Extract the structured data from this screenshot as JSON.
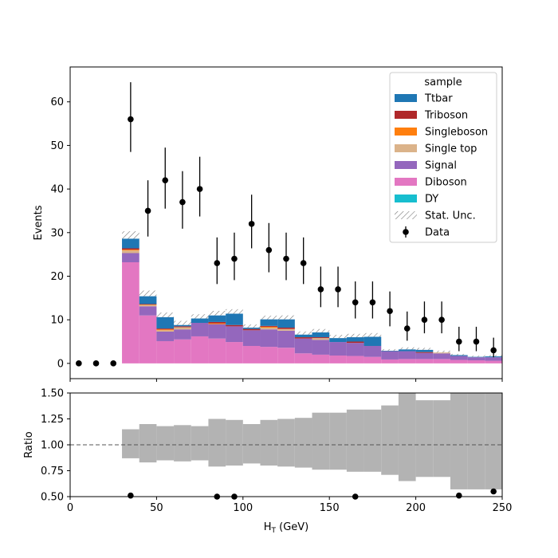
{
  "chart_data": [
    {
      "panel": "main",
      "type": "bar",
      "stacked": true,
      "ylabel": "Events",
      "xlabel": "",
      "xlim": [
        0,
        250
      ],
      "ylim": [
        -3.5,
        68
      ],
      "yticks": [
        0,
        10,
        20,
        30,
        40,
        50,
        60
      ],
      "bin_edges": [
        0,
        10,
        20,
        30,
        40,
        50,
        60,
        70,
        80,
        90,
        100,
        110,
        120,
        130,
        140,
        150,
        160,
        170,
        180,
        190,
        200,
        210,
        220,
        230,
        240,
        250
      ],
      "legend": {
        "title": "sample",
        "placement": "top-right"
      },
      "series": [
        {
          "name": "Diboson",
          "color": "#e377c2",
          "values": [
            0,
            0,
            0,
            23.2,
            11.0,
            5.1,
            5.5,
            6.2,
            5.7,
            4.9,
            4.0,
            3.8,
            3.6,
            2.3,
            2.0,
            1.8,
            1.7,
            1.5,
            0.9,
            1.0,
            1.0,
            1.0,
            0.8,
            0.7,
            0.6
          ]
        },
        {
          "name": "DY",
          "color": "#17becf",
          "values": [
            0,
            0,
            0,
            0,
            0,
            0,
            0,
            0,
            0,
            0,
            0,
            0,
            0,
            0,
            0,
            0,
            0,
            0,
            0,
            0,
            0,
            0,
            0,
            0,
            0
          ]
        },
        {
          "name": "Signal",
          "color": "#9467bd",
          "values": [
            0,
            0,
            0,
            2.1,
            2.1,
            2.2,
            2.3,
            3.1,
            3.3,
            3.6,
            3.6,
            4.0,
            3.9,
            3.4,
            3.4,
            3.1,
            3.0,
            2.5,
            1.9,
            1.8,
            1.4,
            1.3,
            0.9,
            0.7,
            0.8
          ]
        },
        {
          "name": "Single top",
          "color": "#dbb38a",
          "values": [
            0,
            0,
            0,
            0.6,
            0.3,
            0.3,
            0.5,
            0,
            0,
            0,
            0,
            0.4,
            0.4,
            0,
            0.4,
            0,
            0,
            0,
            0,
            0,
            0,
            0.2,
            0,
            0,
            0
          ]
        },
        {
          "name": "Singleboson",
          "color": "#ff7f0e",
          "values": [
            0,
            0,
            0,
            0.2,
            0.1,
            0.2,
            0,
            0,
            0.2,
            0,
            0,
            0.2,
            0,
            0,
            0,
            0,
            0,
            0,
            0,
            0,
            0,
            0,
            0,
            0,
            0
          ]
        },
        {
          "name": "Triboson",
          "color": "#b0282a",
          "values": [
            0,
            0,
            0,
            0.3,
            0.1,
            0.2,
            0.2,
            0,
            0.3,
            0.3,
            0.3,
            0.2,
            0.3,
            0.3,
            0.2,
            0,
            0.3,
            0,
            0,
            0,
            0.2,
            0,
            0,
            0,
            0
          ]
        },
        {
          "name": "Ttbar",
          "color": "#1f77b4",
          "values": [
            0,
            0,
            0,
            2.2,
            1.8,
            2.6,
            0.3,
            1.0,
            1.5,
            2.6,
            0.3,
            1.5,
            1.9,
            0.6,
            1.1,
            0.9,
            1.0,
            2.1,
            0.1,
            0.4,
            0.5,
            0,
            0.2,
            0.1,
            0.2
          ]
        }
      ],
      "stat_unc": {
        "name": "Stat. Unc.",
        "rel_up": [
          0,
          0,
          0,
          0.06,
          0.085,
          0.1,
          0.11,
          0.095,
          0.095,
          0.09,
          0.09,
          0.085,
          0.09,
          0.11,
          0.11,
          0.13,
          0.13,
          0.14,
          0.13,
          0.15,
          0.15,
          0.17,
          0.15,
          0.18,
          0.2
        ]
      },
      "data": {
        "name": "Data",
        "x": [
          5,
          15,
          25,
          35,
          45,
          55,
          65,
          75,
          85,
          95,
          105,
          115,
          125,
          135,
          145,
          155,
          165,
          175,
          185,
          195,
          205,
          215,
          225,
          235,
          245
        ],
        "y": [
          0,
          0,
          0,
          56,
          35,
          42,
          37,
          40,
          23,
          24,
          32,
          26,
          24,
          23,
          17,
          17,
          14,
          14,
          12,
          8,
          10,
          10,
          5,
          5,
          3
        ],
        "yerr_up": [
          0,
          0,
          0,
          8.5,
          7.0,
          7.5,
          7.1,
          7.4,
          5.9,
          6.0,
          6.7,
          6.2,
          6.0,
          5.9,
          5.2,
          5.2,
          4.8,
          4.8,
          4.5,
          3.9,
          4.2,
          4.2,
          3.4,
          3.4,
          2.9
        ],
        "yerr_down": [
          0,
          0,
          0,
          7.5,
          5.9,
          6.5,
          6.1,
          6.3,
          4.8,
          4.9,
          5.6,
          5.1,
          4.9,
          4.8,
          4.1,
          4.1,
          3.7,
          3.7,
          3.5,
          2.8,
          3.1,
          3.1,
          2.2,
          2.2,
          1.6
        ]
      },
      "legend_order": [
        "Ttbar",
        "Triboson",
        "Singleboson",
        "Single top",
        "Signal",
        "Diboson",
        "DY",
        "Stat. Unc.",
        "Data"
      ]
    },
    {
      "panel": "ratio",
      "type": "area",
      "ylabel": "Ratio",
      "xlabel": "H$_T$ (GeV)",
      "xlabel_main": "H",
      "xlabel_sub": "T",
      "xlabel_rest": " (GeV)",
      "xlim": [
        0,
        250
      ],
      "ylim": [
        0.5,
        1.5
      ],
      "yticks": [
        0.5,
        0.75,
        1.0,
        1.25,
        1.5
      ],
      "ytick_labels": [
        "0.50",
        "0.75",
        "1.00",
        "1.25",
        "1.50"
      ],
      "xticks": [
        0,
        50,
        100,
        150,
        200,
        250
      ],
      "reference_line": 1.0,
      "band_color": "#b3b3b3",
      "band_x": [
        30,
        40,
        50,
        60,
        70,
        80,
        90,
        100,
        110,
        120,
        130,
        140,
        150,
        160,
        170,
        180,
        190,
        200,
        210,
        220,
        230,
        240
      ],
      "band_low": [
        0.87,
        0.83,
        0.85,
        0.84,
        0.85,
        0.79,
        0.8,
        0.82,
        0.8,
        0.79,
        0.78,
        0.76,
        0.76,
        0.74,
        0.74,
        0.71,
        0.65,
        0.69,
        0.69,
        0.57,
        0.57,
        0.57
      ],
      "band_high": [
        1.15,
        1.2,
        1.18,
        1.19,
        1.18,
        1.25,
        1.24,
        1.2,
        1.24,
        1.25,
        1.26,
        1.31,
        1.31,
        1.34,
        1.34,
        1.38,
        1.5,
        1.43,
        1.43,
        1.5,
        1.5,
        1.5
      ],
      "points": {
        "x": [
          35,
          85,
          95,
          165,
          225,
          245
        ],
        "y": [
          0.51,
          0.5,
          0.5,
          0.5,
          0.51,
          0.55
        ]
      }
    }
  ]
}
